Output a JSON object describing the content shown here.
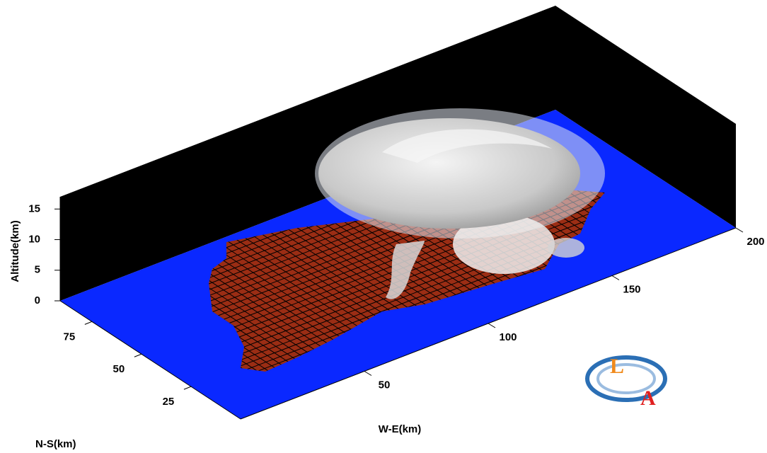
{
  "chart_data": {
    "type": "scene3d",
    "xlabel": "W-E(km)",
    "ylabel": "N-S(km)",
    "zlabel": "Altitude(km)",
    "xlim": [
      0,
      200
    ],
    "ylim": [
      0,
      91
    ],
    "zlim": [
      0,
      17
    ],
    "xticks": [
      50,
      100,
      150,
      200
    ],
    "yticks": [
      25,
      50,
      75
    ],
    "zticks": [
      0,
      5,
      10,
      15
    ],
    "floor_color": "#0a28ff",
    "wall_color": "#000000",
    "terrain_color": "#9b2d14"
  },
  "logo": {
    "letters": [
      "L",
      "A"
    ]
  }
}
